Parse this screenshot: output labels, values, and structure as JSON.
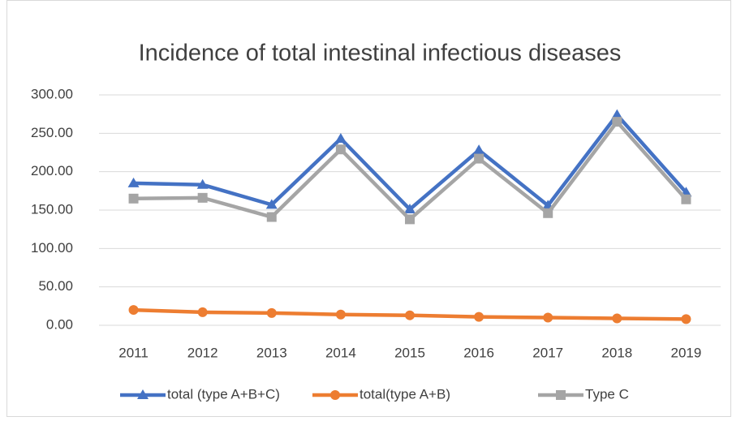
{
  "chart_data": {
    "type": "line",
    "title": "Incidence of total intestinal infectious diseases",
    "categories": [
      "2011",
      "2012",
      "2013",
      "2014",
      "2015",
      "2016",
      "2017",
      "2018",
      "2019"
    ],
    "series": [
      {
        "name": "total (type A+B+C)",
        "color": "#4472c4",
        "marker": "triangle",
        "values": [
          185,
          183,
          157,
          243,
          151,
          228,
          156,
          274,
          173
        ]
      },
      {
        "name": "total(type A+B)",
        "color": "#ed7d31",
        "marker": "circle",
        "values": [
          20,
          17,
          16,
          14,
          13,
          11,
          10,
          9,
          8
        ]
      },
      {
        "name": "Type C",
        "color": "#a5a5a5",
        "marker": "square",
        "values": [
          165,
          166,
          141,
          229,
          138,
          217,
          146,
          265,
          164
        ]
      }
    ],
    "ylim": [
      0,
      300
    ],
    "yticks": [
      {
        "value": 0,
        "label": "0.00"
      },
      {
        "value": 50,
        "label": "50.00"
      },
      {
        "value": 100,
        "label": "100.00"
      },
      {
        "value": 150,
        "label": "150.00"
      },
      {
        "value": 200,
        "label": "200.00"
      },
      {
        "value": 250,
        "label": "250.00"
      },
      {
        "value": 300,
        "label": "300.00"
      }
    ],
    "grid": true,
    "legend": "bottom"
  }
}
